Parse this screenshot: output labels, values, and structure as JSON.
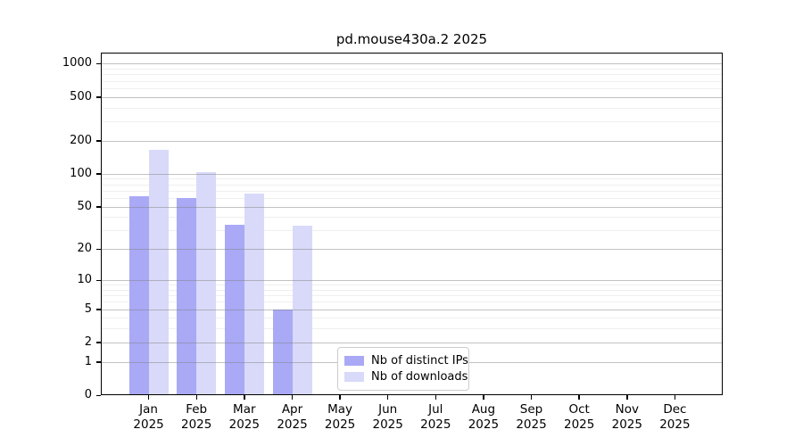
{
  "chart_data": {
    "type": "bar",
    "title": "pd.mouse430a.2 2025",
    "categories": [
      "Jan",
      "Feb",
      "Mar",
      "Apr",
      "May",
      "Jun",
      "Jul",
      "Aug",
      "Sep",
      "Oct",
      "Nov",
      "Dec"
    ],
    "category_year": "2025",
    "series": [
      {
        "name": "Nb of distinct IPs",
        "color": "#a9a9f6",
        "values": [
          62,
          60,
          34,
          5,
          0,
          0,
          0,
          0,
          0,
          0,
          0,
          0
        ]
      },
      {
        "name": "Nb of downloads",
        "color": "#d9d9f9",
        "values": [
          165,
          104,
          66,
          33,
          0,
          0,
          0,
          0,
          0,
          0,
          0,
          0
        ]
      }
    ],
    "y_axis": {
      "scale": "log(1+x)",
      "tick_values": [
        0,
        1,
        2,
        5,
        10,
        20,
        50,
        100,
        200,
        500,
        1000
      ],
      "minor_tick_values": [
        3,
        4,
        6,
        7,
        8,
        9,
        30,
        40,
        60,
        70,
        80,
        90,
        300,
        400,
        600,
        700,
        800,
        900
      ],
      "max_log10": 3.1
    },
    "x_axis": {
      "label_line2": "2025"
    },
    "legend": {
      "position": "lower center"
    },
    "grid": true
  },
  "colors": {
    "bar_distinct_ips": "#a9a9f6",
    "bar_downloads": "#d9d9f9",
    "grid_major": "#c2c2c2",
    "grid_minor": "#eeeeee",
    "axis": "#000000",
    "legend_border": "#cccccc",
    "background": "#ffffff"
  }
}
